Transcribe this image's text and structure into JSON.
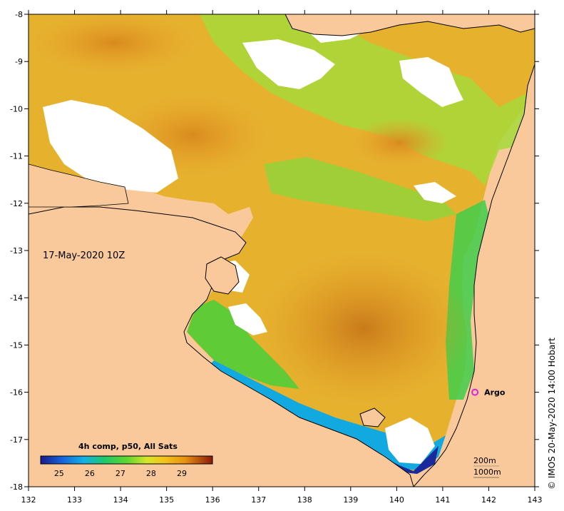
{
  "map": {
    "lon_labels": [
      "132",
      "133",
      "134",
      "135",
      "136",
      "137",
      "138",
      "139",
      "140",
      "141",
      "142",
      "143"
    ],
    "lat_labels": [
      "-8",
      "-9",
      "-10",
      "-11",
      "-12",
      "-13",
      "-14",
      "-15",
      "-16",
      "-17",
      "-18"
    ],
    "date_label": "17-May-2020 10Z",
    "colorbar": {
      "title": "4h comp, p50, All Sats",
      "tick_labels": [
        "25",
        "26",
        "27",
        "28",
        "29"
      ]
    },
    "argo": {
      "label": "Argo",
      "lon": 141.7,
      "lat": -16.0,
      "color": "#e020e0"
    },
    "contours": {
      "line1": "200m",
      "line2": "1000m"
    },
    "credit": "©  IMOS 20-May-2020 14:00 Hobart",
    "colors": {
      "land": "#f9c99b",
      "no_data": "#ffffff",
      "sst_cold": "#1a1a8c",
      "sst_warm": "#8b1a0a"
    }
  }
}
